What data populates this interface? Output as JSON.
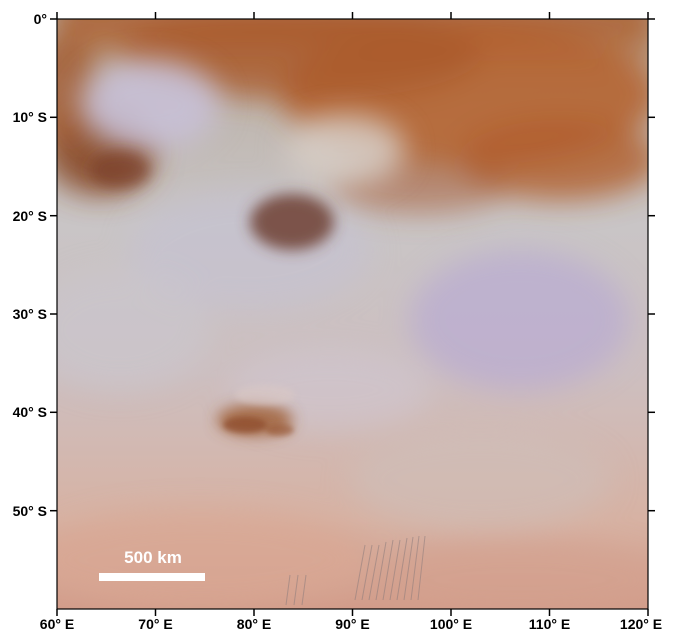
{
  "map": {
    "lon_labels": [
      "60° E",
      "70° E",
      "80° E",
      "90° E",
      "100° E",
      "110° E",
      "120° E"
    ],
    "lat_labels": [
      "0°",
      "10° S",
      "20° S",
      "30° S",
      "40° S",
      "50° S"
    ],
    "scale_bar": {
      "label": "500 km"
    },
    "colors": {
      "dark_terrain": "#b05a28",
      "bright_terrain": "#c8c8c8",
      "haze_violet": "#b8a8d8",
      "southern_tint": "#d8a890",
      "frame": "#000000"
    }
  }
}
